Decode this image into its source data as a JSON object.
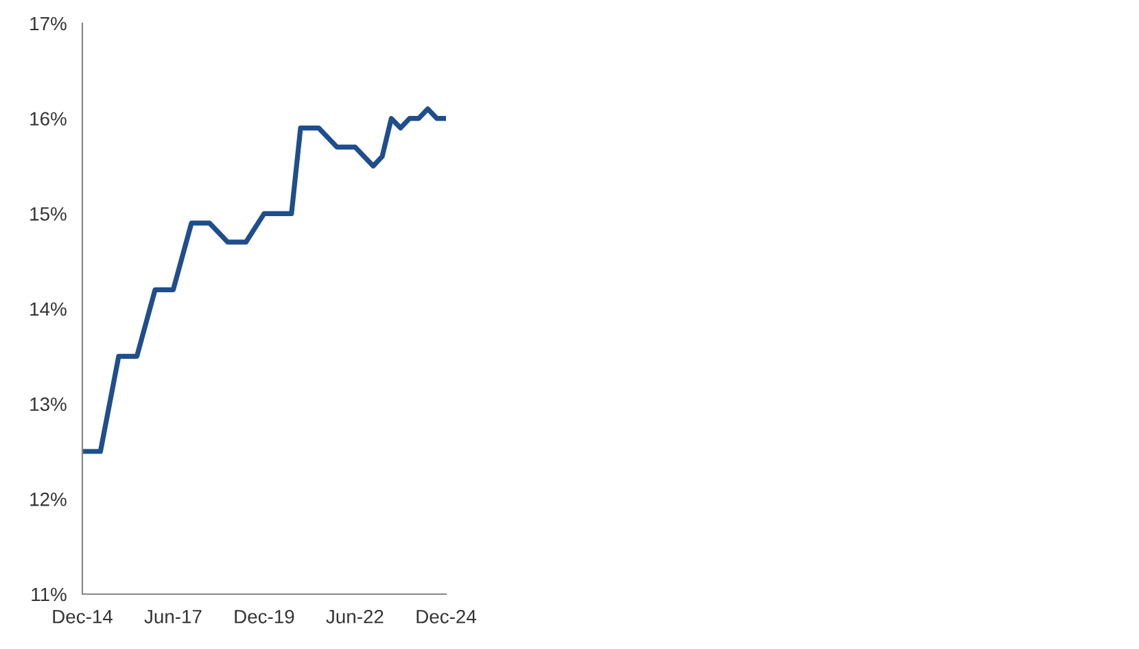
{
  "chart_data": {
    "type": "line",
    "x": [
      "2014-12",
      "2015-06",
      "2015-12",
      "2016-06",
      "2016-12",
      "2017-06",
      "2017-12",
      "2018-06",
      "2018-12",
      "2019-06",
      "2019-12",
      "2020-09",
      "2020-12",
      "2021-06",
      "2021-12",
      "2022-06",
      "2022-12",
      "2023-03",
      "2023-06",
      "2023-09",
      "2023-12",
      "2024-03",
      "2024-06",
      "2024-09",
      "2024-12"
    ],
    "series": [
      {
        "color": "#1f4e8c",
        "values": [
          12.5,
          12.5,
          13.5,
          13.5,
          14.2,
          14.2,
          14.9,
          14.9,
          14.7,
          14.7,
          15.0,
          15.0,
          15.9,
          15.9,
          15.7,
          15.7,
          15.5,
          15.6,
          16.0,
          15.9,
          16.0,
          16.0,
          16.1,
          16.0,
          16.0
        ]
      }
    ],
    "xlim": [
      "2014-12",
      "2024-12"
    ],
    "xticks": [
      {
        "value": "2014-12",
        "label": "Dec-14"
      },
      {
        "value": "2017-06",
        "label": "Jun-17"
      },
      {
        "value": "2019-12",
        "label": "Dec-19"
      },
      {
        "value": "2022-06",
        "label": "Jun-22"
      },
      {
        "value": "2024-12",
        "label": "Dec-24"
      }
    ],
    "ylim": [
      11,
      17
    ],
    "yticks": [
      {
        "value": 11,
        "label": "11%"
      },
      {
        "value": 12,
        "label": "12%"
      },
      {
        "value": 13,
        "label": "13%"
      },
      {
        "value": 14,
        "label": "14%"
      },
      {
        "value": 15,
        "label": "15%"
      },
      {
        "value": 16,
        "label": "16%"
      },
      {
        "value": 17,
        "label": "17%"
      }
    ],
    "grid": false,
    "legend": false,
    "marker": "none",
    "line_style": "solid"
  }
}
